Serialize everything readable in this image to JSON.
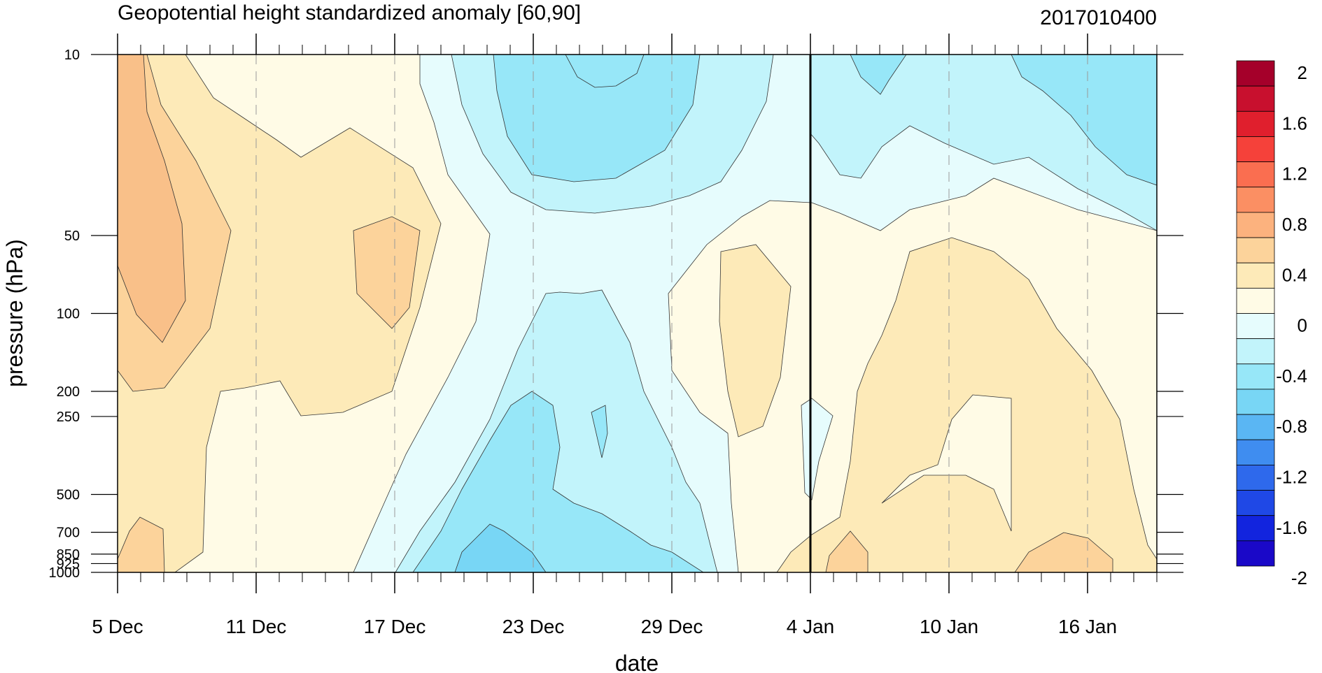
{
  "chart_data": {
    "type": "contour",
    "title": "Geopotential height standardized anomaly [60,90]",
    "subtitle_right": "2017010400",
    "xlabel": "date",
    "ylabel": "pressure (hPa)",
    "x_ticks": [
      "5 Dec",
      "11 Dec",
      "17 Dec",
      "23 Dec",
      "29 Dec",
      "4 Jan",
      "10 Jan",
      "16 Jan"
    ],
    "x_days": [
      0,
      6,
      12,
      18,
      24,
      30,
      36,
      42
    ],
    "xlim_days": [
      0,
      45
    ],
    "y_ticks": [
      "10",
      "50",
      "100",
      "200",
      "250",
      "500",
      "700",
      "850",
      "925",
      "1000"
    ],
    "y_levels_hpa": [
      10,
      50,
      100,
      200,
      250,
      500,
      700,
      850,
      925,
      1000
    ],
    "ylim_hpa": [
      10,
      1000
    ],
    "y_scale": "log",
    "y_reversed": true,
    "forecast_start_day": 30,
    "colorbar_labels": [
      "2",
      "1.6",
      "1.2",
      "0.8",
      "0.4",
      "0",
      "-0.4",
      "-0.8",
      "-1.2",
      "-1.6",
      "-2"
    ],
    "colorbar_colors": [
      "#a5002a",
      "#c8102e",
      "#e01f2d",
      "#f5413a",
      "#fa6e50",
      "#fb8f63",
      "#fcb27e",
      "#fcd39b",
      "#fdeab8",
      "#fffbe6",
      "#e6fcfd",
      "#c2f4fb",
      "#97e7f8",
      "#78d6f5",
      "#5ab6f3",
      "#3f8df0",
      "#2e69ec",
      "#1f48e6",
      "#1224de",
      "#1a08c8"
    ],
    "anomaly_fill_colors": {
      "pos_0_0.2": "#fffbe6",
      "pos_0.2_0.4": "#fdeab8",
      "pos_0.4_0.6": "#fcd39b",
      "neg_0_-0.2": "#e6fcfd",
      "neg_-0.2_-0.4": "#c2f4fb",
      "neg_-0.4_-0.6": "#97e7f8",
      "neg_-0.6_-0.8": "#78d6f5"
    }
  }
}
